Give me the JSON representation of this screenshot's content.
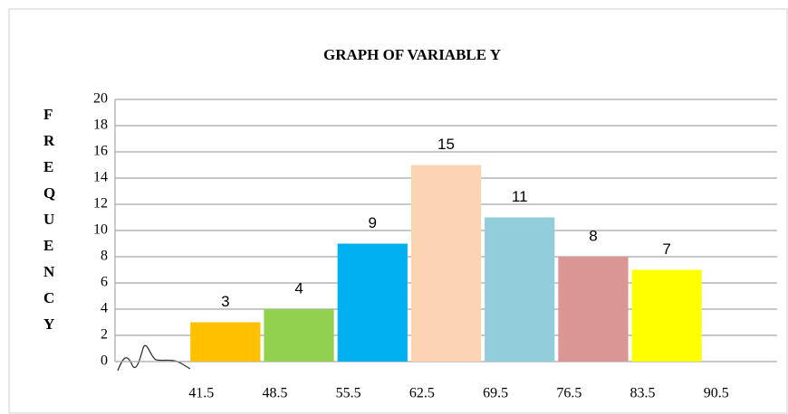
{
  "chart_data": {
    "type": "histogram",
    "title": "GRAPH OF VARIABLE Y",
    "y_label": "FREQUENCY",
    "bins": [
      41.5,
      48.5,
      55.5,
      62.5,
      69.5,
      76.5,
      83.5,
      90.5
    ],
    "values": [
      3,
      4,
      9,
      15,
      11,
      8,
      7
    ],
    "colors": [
      "#ffc000",
      "#92d050",
      "#00b0f0",
      "#fbd4b4",
      "#92cddc",
      "#d99694",
      "#ffff00"
    ],
    "xlim": [
      34.5,
      97.5
    ],
    "xticks": [
      41.5,
      48.5,
      55.5,
      62.5,
      69.5,
      76.5,
      83.5,
      90.5
    ],
    "ylim": [
      0,
      20
    ],
    "yticks": [
      0,
      2,
      4,
      6,
      8,
      10,
      12,
      14,
      16,
      18,
      20
    ],
    "grid": true
  }
}
